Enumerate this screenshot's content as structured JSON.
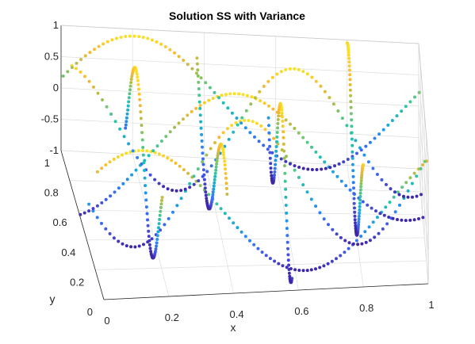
{
  "chart_data": {
    "type": "scatter",
    "subtype": "3d-scatter",
    "title": "Solution SS with Variance",
    "xlabel": "x",
    "ylabel": "y",
    "zlabel": "",
    "xlim": [
      0,
      1
    ],
    "ylim": [
      0,
      1
    ],
    "zlim": [
      -1,
      1
    ],
    "x_ticks": [
      "0",
      "0.2",
      "0.4",
      "0.6",
      "0.8",
      "1"
    ],
    "y_ticks": [
      "0",
      "0.2",
      "0.4",
      "0.6",
      "0.8",
      "1"
    ],
    "z_ticks": [
      "-1",
      "-0.5",
      "0",
      "0.5",
      "1"
    ],
    "grid": true,
    "colormap": "parula",
    "colormap_stops": [
      "#3e26a8",
      "#4653e3",
      "#2f7ff8",
      "#1ba6dc",
      "#1ec0b6",
      "#5dc77f",
      "#b4bd47",
      "#fbb930",
      "#f9e225"
    ],
    "view": {
      "azimuth": -5,
      "elevation": 25
    },
    "note_series": "Traces are sampled as z = sin(2*pi*(f*x + p)) on rows of constant y (wavy curves) and columns of constant x (spiky curves); colour encodes variance.",
    "series": [
      {
        "kind": "row",
        "y": 0.15,
        "f": 1.0,
        "p": 0.12
      },
      {
        "kind": "row",
        "y": 0.35,
        "f": 1.5,
        "p": 0.55
      },
      {
        "kind": "row",
        "y": 0.55,
        "f": 1.0,
        "p": 0.8
      },
      {
        "kind": "row",
        "y": 0.75,
        "f": 1.5,
        "p": 0.3
      },
      {
        "kind": "row",
        "y": 0.95,
        "f": 1.0,
        "p": 0.05
      },
      {
        "kind": "col",
        "x": 0.18,
        "f": 1.2,
        "p": 0.4
      },
      {
        "kind": "col",
        "x": 0.38,
        "f": 1.0,
        "p": 0.1
      },
      {
        "kind": "col",
        "x": 0.58,
        "f": 1.3,
        "p": 0.65
      },
      {
        "kind": "col",
        "x": 0.8,
        "f": 1.0,
        "p": 0.3
      }
    ]
  }
}
